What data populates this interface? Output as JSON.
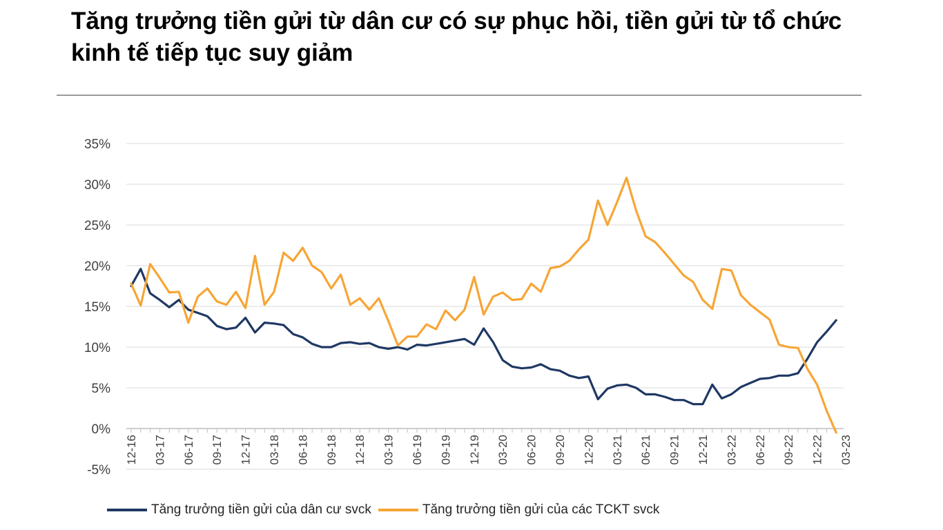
{
  "title": "Tăng trưởng tiền gửi từ dân cư có sự phục hồi, tiền gửi từ tổ chức kinh tế tiếp tục suy giảm",
  "chart_data": {
    "type": "line",
    "title": "",
    "xlabel": "",
    "ylabel": "",
    "ylim": [
      -5,
      35
    ],
    "yticks": [
      35,
      30,
      25,
      20,
      15,
      10,
      5,
      0,
      -5
    ],
    "ytick_labels": [
      "35%",
      "30%",
      "25%",
      "20%",
      "15%",
      "10%",
      "5%",
      "0%",
      "-5%"
    ],
    "grid": "horizontal",
    "legend_position": "bottom",
    "x_tick_labels": [
      "12-16",
      "03-17",
      "06-17",
      "09-17",
      "12-17",
      "03-18",
      "06-18",
      "09-18",
      "12-18",
      "03-19",
      "06-19",
      "09-19",
      "12-19",
      "03-20",
      "06-20",
      "09-20",
      "12-20",
      "03-21",
      "06-21",
      "09-21",
      "12-21",
      "03-22",
      "06-22",
      "09-22",
      "12-22",
      "03-23"
    ],
    "x_start": "12-16",
    "x_frequency": "monthly",
    "series": [
      {
        "name": "Tăng trưởng tiền gửi của dân cư svck",
        "color": "#1f3864",
        "values": [
          17.5,
          19.6,
          16.6,
          15.8,
          14.9,
          15.8,
          14.6,
          14.2,
          13.8,
          12.6,
          12.2,
          12.4,
          13.6,
          11.8,
          13.0,
          12.9,
          12.7,
          11.6,
          11.2,
          10.4,
          10.0,
          10.0,
          10.5,
          10.6,
          10.4,
          10.5,
          10.0,
          9.8,
          10.0,
          9.7,
          10.3,
          10.2,
          10.4,
          10.6,
          10.8,
          11.0,
          10.3,
          12.3,
          10.6,
          8.4,
          7.6,
          7.4,
          7.5,
          7.9,
          7.3,
          7.1,
          6.5,
          6.2,
          6.4,
          3.6,
          4.9,
          5.3,
          5.4,
          5.0,
          4.2,
          4.2,
          3.9,
          3.5,
          3.5,
          3.0,
          3.0,
          5.4,
          3.7,
          4.2,
          5.1,
          5.6,
          6.1,
          6.2,
          6.5,
          6.5,
          6.8,
          8.6,
          10.6,
          11.9,
          13.3
        ]
      },
      {
        "name": "Tăng trưởng tiền gửi của các TCKT svck",
        "color": "#f7a535",
        "values": [
          17.8,
          15.1,
          20.2,
          18.5,
          16.7,
          16.8,
          13.0,
          16.2,
          17.2,
          15.6,
          15.2,
          16.8,
          14.8,
          21.2,
          15.2,
          16.8,
          21.6,
          20.6,
          22.2,
          20.0,
          19.2,
          17.2,
          18.9,
          15.2,
          16.0,
          14.6,
          16.0,
          13.2,
          10.2,
          11.3,
          11.3,
          12.8,
          12.2,
          14.5,
          13.3,
          14.6,
          18.6,
          14.0,
          16.2,
          16.7,
          15.8,
          15.9,
          17.8,
          16.8,
          19.7,
          19.9,
          20.6,
          22.0,
          23.2,
          28.0,
          25.0,
          27.8,
          30.8,
          26.8,
          23.6,
          22.9,
          21.6,
          20.2,
          18.8,
          18.0,
          15.8,
          14.7,
          19.6,
          19.4,
          16.4,
          15.2,
          14.3,
          13.4,
          10.3,
          10.0,
          9.9,
          7.3,
          5.4,
          2.2,
          -0.5
        ]
      }
    ]
  }
}
